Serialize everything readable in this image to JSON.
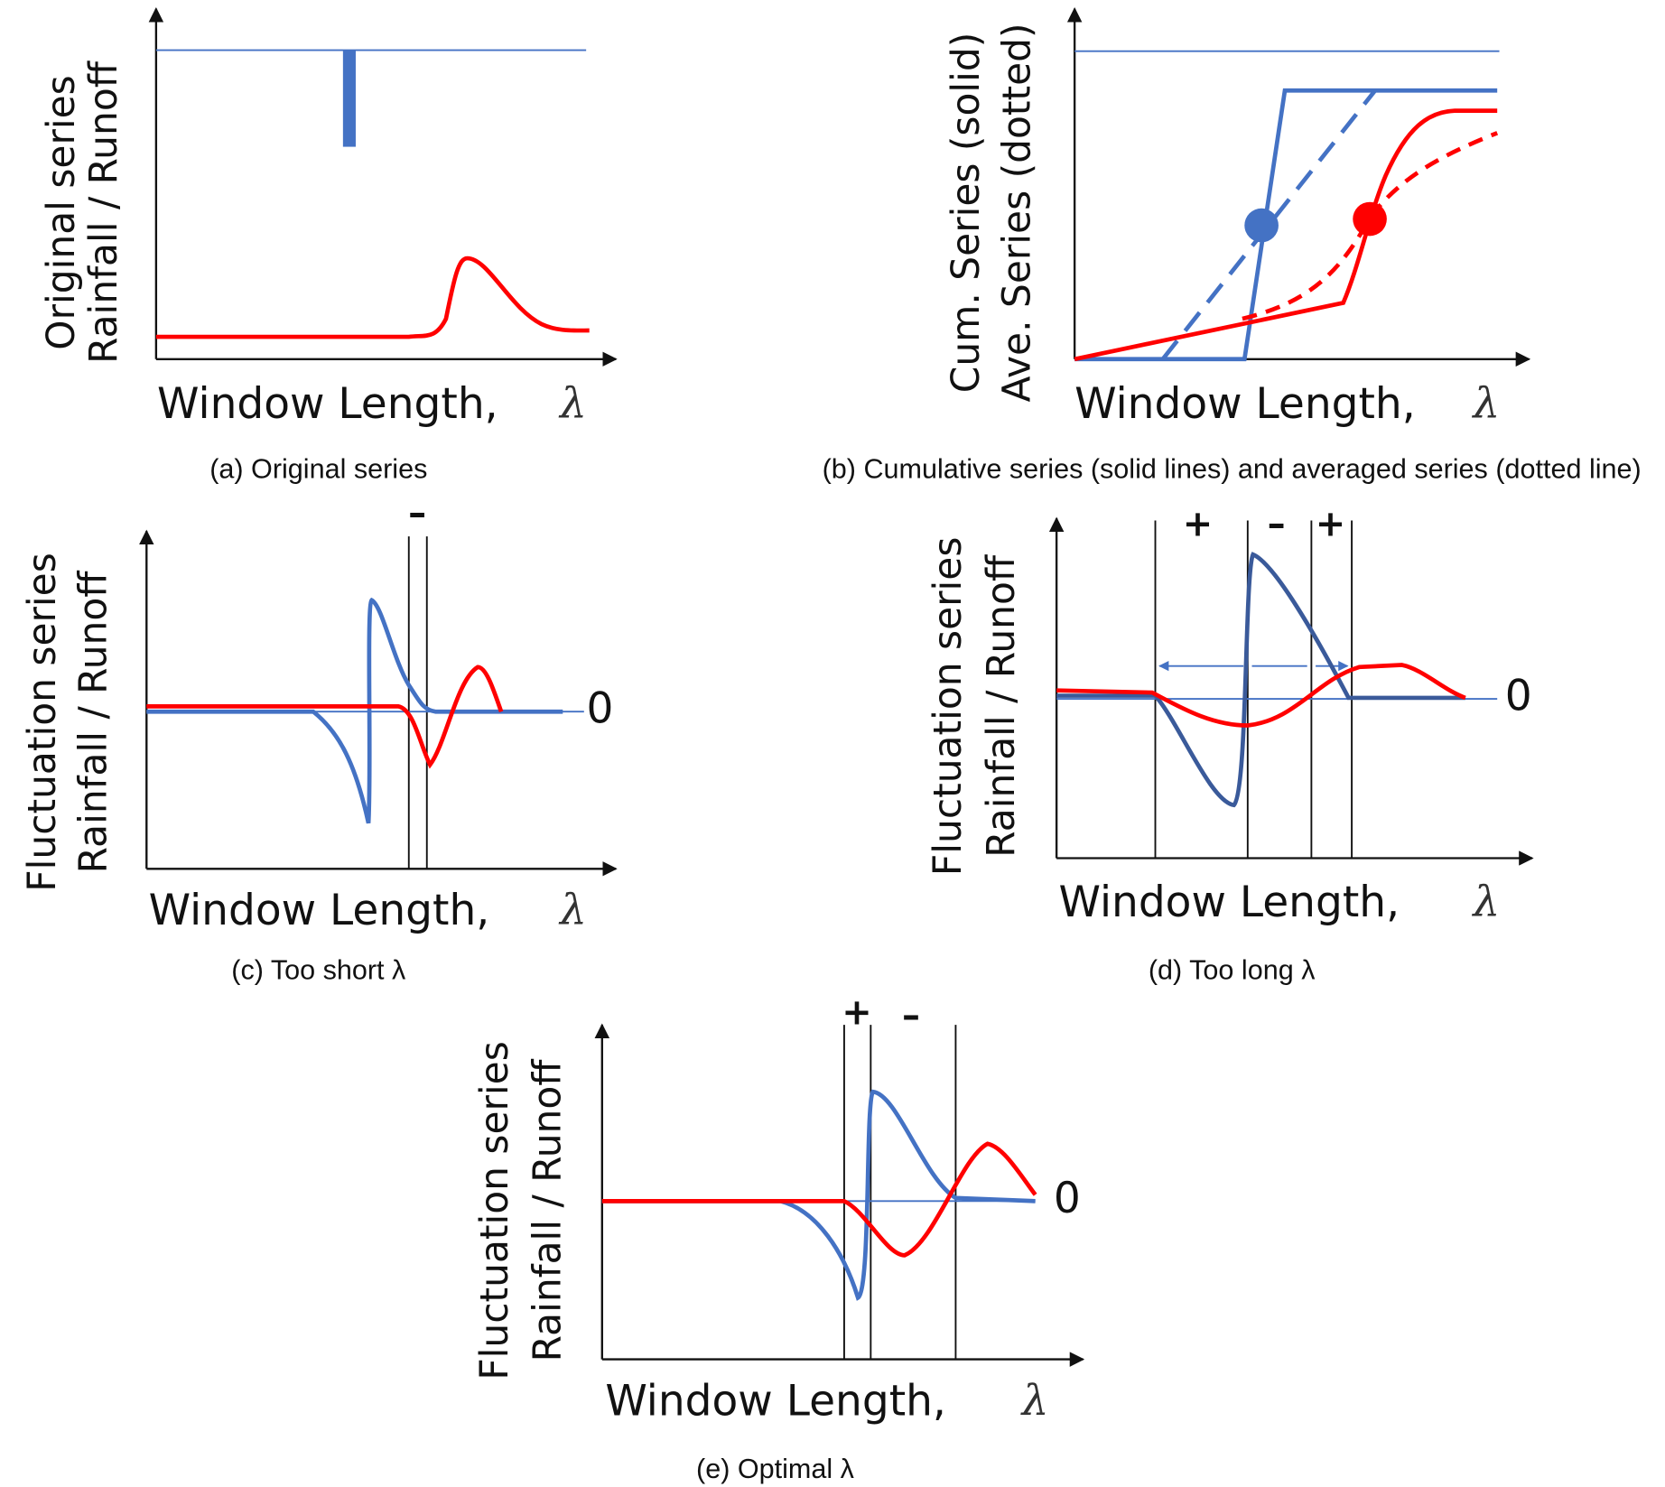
{
  "panels": [
    {
      "y_label": [
        "Original series",
        "Rainfall / Runoff"
      ],
      "x_label": "Window Length,",
      "x_symbol": "λ",
      "caption": "(a) Original series"
    },
    {
      "y_label": [
        "Cum. Series (solid)",
        "Ave. Series (dotted)"
      ],
      "x_label": "Window Length,",
      "x_symbol": "λ",
      "caption": "(b) Cumulative series (solid lines) and averaged series (dotted line)"
    },
    {
      "y_label": [
        "Fluctuation series",
        "Rainfall / Runoff"
      ],
      "x_label": "Window Length,",
      "x_symbol": "λ",
      "zero": "0",
      "signs": [
        "–"
      ],
      "caption": "(c) Too short λ"
    },
    {
      "y_label": [
        "Fluctuation series",
        "Rainfall / Runoff"
      ],
      "x_label": "Window Length,",
      "x_symbol": "λ",
      "zero": "0",
      "signs": [
        "+",
        "–",
        "+"
      ],
      "caption": "(d) Too long λ"
    },
    {
      "y_label": [
        "Fluctuation series",
        "Rainfall / Runoff"
      ],
      "x_label": "Window Length,",
      "x_symbol": "λ",
      "zero": "0",
      "signs": [
        "+",
        "–"
      ],
      "caption": "(e) Optimal λ"
    }
  ]
}
